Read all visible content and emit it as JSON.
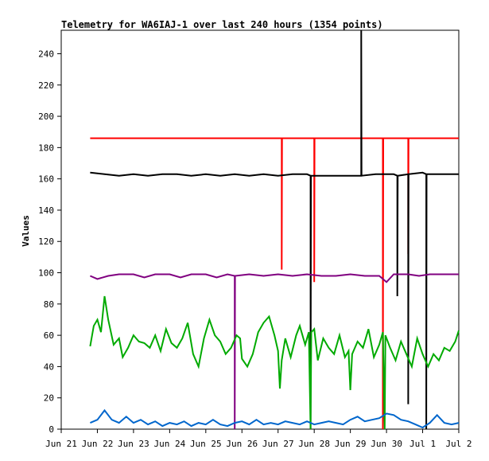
{
  "chart_data": {
    "type": "line",
    "title": "Telemetry for WA6IAJ-1 over last 240 hours (1354 points)",
    "xlabel": "",
    "ylabel": "Values",
    "ylim": [
      0,
      255
    ],
    "y_ticks": [
      0,
      20,
      40,
      60,
      80,
      100,
      120,
      140,
      160,
      180,
      200,
      220,
      240
    ],
    "x_ticks": [
      {
        "day": 21,
        "label": "Jun 21"
      },
      {
        "day": 22,
        "label": "Jun 22"
      },
      {
        "day": 23,
        "label": "Jun 23"
      },
      {
        "day": 24,
        "label": "Jun 24"
      },
      {
        "day": 25,
        "label": "Jun 25"
      },
      {
        "day": 26,
        "label": "Jun 26"
      },
      {
        "day": 27,
        "label": "Jun 27"
      },
      {
        "day": 28,
        "label": "Jun 28"
      },
      {
        "day": 29,
        "label": "Jun 29"
      },
      {
        "day": 30,
        "label": "Jun 30"
      },
      {
        "day": 31,
        "label": "Jul 1"
      },
      {
        "day": 32,
        "label": "Jul 2"
      }
    ],
    "xlim": [
      21,
      32
    ],
    "grid": false,
    "legend": "none",
    "series": [
      {
        "color": "#ff0000",
        "points": [
          [
            21.8,
            186
          ],
          [
            27.1,
            186
          ],
          [
            27.1,
            102
          ],
          [
            27.11,
            186
          ],
          [
            28.0,
            186
          ],
          [
            28.0,
            94
          ],
          [
            28.01,
            186
          ],
          [
            29.9,
            186
          ],
          [
            29.9,
            0
          ],
          [
            29.91,
            186
          ],
          [
            30.6,
            186
          ],
          [
            30.6,
            112
          ],
          [
            30.61,
            186
          ],
          [
            32.0,
            186
          ]
        ]
      },
      {
        "color": "#000000",
        "points": [
          [
            21.8,
            164
          ],
          [
            22.2,
            163
          ],
          [
            22.6,
            162
          ],
          [
            23.0,
            163
          ],
          [
            23.4,
            162
          ],
          [
            23.8,
            163
          ],
          [
            24.2,
            163
          ],
          [
            24.6,
            162
          ],
          [
            25.0,
            163
          ],
          [
            25.4,
            162
          ],
          [
            25.8,
            163
          ],
          [
            26.2,
            162
          ],
          [
            26.6,
            163
          ],
          [
            27.0,
            162
          ],
          [
            27.4,
            163
          ],
          [
            27.8,
            163
          ],
          [
            27.9,
            162
          ],
          [
            27.9,
            0
          ],
          [
            27.91,
            162
          ],
          [
            28.4,
            162
          ],
          [
            28.8,
            162
          ],
          [
            29.3,
            162
          ],
          [
            29.3,
            255
          ],
          [
            29.31,
            162
          ],
          [
            29.7,
            163
          ],
          [
            30.2,
            163
          ],
          [
            30.3,
            162
          ],
          [
            30.3,
            85
          ],
          [
            30.31,
            162
          ],
          [
            30.6,
            163
          ],
          [
            30.6,
            16
          ],
          [
            30.61,
            163
          ],
          [
            31.0,
            164
          ],
          [
            31.1,
            163
          ],
          [
            31.1,
            0
          ],
          [
            31.11,
            163
          ],
          [
            31.5,
            163
          ],
          [
            32.0,
            163
          ]
        ]
      },
      {
        "color": "#800080",
        "points": [
          [
            21.8,
            98
          ],
          [
            22.0,
            96
          ],
          [
            22.3,
            98
          ],
          [
            22.6,
            99
          ],
          [
            23.0,
            99
          ],
          [
            23.3,
            97
          ],
          [
            23.6,
            99
          ],
          [
            24.0,
            99
          ],
          [
            24.3,
            97
          ],
          [
            24.6,
            99
          ],
          [
            25.0,
            99
          ],
          [
            25.3,
            97
          ],
          [
            25.6,
            99
          ],
          [
            25.8,
            98
          ],
          [
            25.8,
            0
          ],
          [
            25.81,
            98
          ],
          [
            26.2,
            99
          ],
          [
            26.6,
            98
          ],
          [
            27.0,
            99
          ],
          [
            27.4,
            98
          ],
          [
            27.8,
            99
          ],
          [
            28.2,
            98
          ],
          [
            28.6,
            98
          ],
          [
            29.0,
            99
          ],
          [
            29.4,
            98
          ],
          [
            29.8,
            98
          ],
          [
            30.0,
            94
          ],
          [
            30.2,
            99
          ],
          [
            30.6,
            99
          ],
          [
            30.9,
            98
          ],
          [
            31.2,
            99
          ],
          [
            31.6,
            99
          ],
          [
            32.0,
            99
          ]
        ]
      },
      {
        "color": "#00aa00",
        "points": [
          [
            21.8,
            53
          ],
          [
            21.9,
            66
          ],
          [
            22.0,
            70
          ],
          [
            22.1,
            62
          ],
          [
            22.2,
            85
          ],
          [
            22.3,
            70
          ],
          [
            22.45,
            54
          ],
          [
            22.6,
            58
          ],
          [
            22.7,
            46
          ],
          [
            22.85,
            52
          ],
          [
            23.0,
            60
          ],
          [
            23.15,
            56
          ],
          [
            23.3,
            55
          ],
          [
            23.45,
            52
          ],
          [
            23.6,
            60
          ],
          [
            23.75,
            50
          ],
          [
            23.9,
            64
          ],
          [
            24.05,
            55
          ],
          [
            24.2,
            52
          ],
          [
            24.35,
            58
          ],
          [
            24.5,
            68
          ],
          [
            24.65,
            48
          ],
          [
            24.8,
            40
          ],
          [
            24.95,
            58
          ],
          [
            25.1,
            70
          ],
          [
            25.25,
            60
          ],
          [
            25.4,
            56
          ],
          [
            25.55,
            48
          ],
          [
            25.7,
            52
          ],
          [
            25.85,
            60
          ],
          [
            25.95,
            58
          ],
          [
            26.0,
            45
          ],
          [
            26.15,
            40
          ],
          [
            26.3,
            48
          ],
          [
            26.45,
            62
          ],
          [
            26.6,
            68
          ],
          [
            26.75,
            72
          ],
          [
            26.9,
            60
          ],
          [
            27.0,
            50
          ],
          [
            27.05,
            26
          ],
          [
            27.1,
            44
          ],
          [
            27.2,
            58
          ],
          [
            27.35,
            46
          ],
          [
            27.5,
            60
          ],
          [
            27.6,
            66
          ],
          [
            27.75,
            54
          ],
          [
            27.85,
            62
          ],
          [
            27.9,
            0
          ],
          [
            27.92,
            62
          ],
          [
            28.0,
            64
          ],
          [
            28.1,
            44
          ],
          [
            28.25,
            58
          ],
          [
            28.4,
            52
          ],
          [
            28.55,
            48
          ],
          [
            28.7,
            60
          ],
          [
            28.85,
            46
          ],
          [
            28.95,
            50
          ],
          [
            29.0,
            25
          ],
          [
            29.05,
            48
          ],
          [
            29.2,
            56
          ],
          [
            29.35,
            52
          ],
          [
            29.5,
            64
          ],
          [
            29.65,
            46
          ],
          [
            29.8,
            54
          ],
          [
            29.9,
            62
          ],
          [
            29.95,
            0
          ],
          [
            29.97,
            60
          ],
          [
            30.1,
            52
          ],
          [
            30.25,
            44
          ],
          [
            30.4,
            56
          ],
          [
            30.55,
            48
          ],
          [
            30.7,
            40
          ],
          [
            30.85,
            58
          ],
          [
            31.0,
            48
          ],
          [
            31.15,
            40
          ],
          [
            31.3,
            48
          ],
          [
            31.45,
            44
          ],
          [
            31.6,
            52
          ],
          [
            31.75,
            50
          ],
          [
            31.9,
            56
          ],
          [
            32.0,
            63
          ]
        ]
      },
      {
        "color": "#0066cc",
        "points": [
          [
            21.8,
            4
          ],
          [
            22.0,
            6
          ],
          [
            22.2,
            12
          ],
          [
            22.4,
            6
          ],
          [
            22.6,
            4
          ],
          [
            22.8,
            8
          ],
          [
            23.0,
            4
          ],
          [
            23.2,
            6
          ],
          [
            23.4,
            3
          ],
          [
            23.6,
            5
          ],
          [
            23.8,
            2
          ],
          [
            24.0,
            4
          ],
          [
            24.2,
            3
          ],
          [
            24.4,
            5
          ],
          [
            24.6,
            2
          ],
          [
            24.8,
            4
          ],
          [
            25.0,
            3
          ],
          [
            25.2,
            6
          ],
          [
            25.4,
            3
          ],
          [
            25.6,
            2
          ],
          [
            25.8,
            4
          ],
          [
            26.0,
            5
          ],
          [
            26.2,
            3
          ],
          [
            26.4,
            6
          ],
          [
            26.6,
            3
          ],
          [
            26.8,
            4
          ],
          [
            27.0,
            3
          ],
          [
            27.2,
            5
          ],
          [
            27.4,
            4
          ],
          [
            27.6,
            3
          ],
          [
            27.8,
            5
          ],
          [
            28.0,
            3
          ],
          [
            28.2,
            4
          ],
          [
            28.4,
            5
          ],
          [
            28.6,
            4
          ],
          [
            28.8,
            3
          ],
          [
            29.0,
            6
          ],
          [
            29.2,
            8
          ],
          [
            29.4,
            5
          ],
          [
            29.6,
            6
          ],
          [
            29.8,
            7
          ],
          [
            30.0,
            10
          ],
          [
            30.2,
            9
          ],
          [
            30.4,
            6
          ],
          [
            30.6,
            5
          ],
          [
            30.8,
            3
          ],
          [
            31.0,
            1
          ],
          [
            31.2,
            4
          ],
          [
            31.4,
            9
          ],
          [
            31.6,
            4
          ],
          [
            31.8,
            3
          ],
          [
            32.0,
            4
          ]
        ]
      }
    ]
  }
}
